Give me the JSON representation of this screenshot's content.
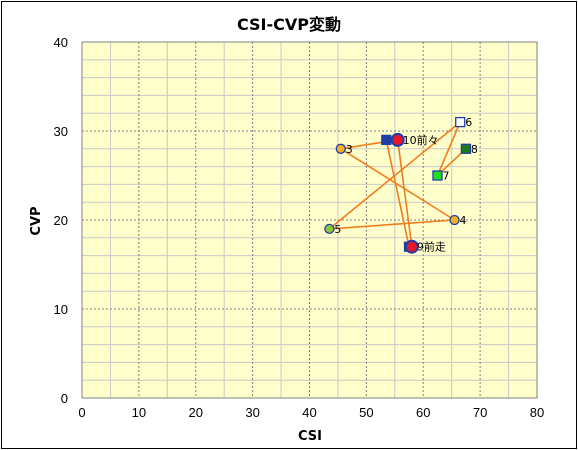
{
  "chart_data": {
    "type": "scatter",
    "title": "CSI-CVP変動",
    "xlabel": "CSI",
    "ylabel": "CVP",
    "xlim": [
      0,
      80
    ],
    "ylim": [
      0,
      40
    ],
    "x_ticks": [
      0,
      10,
      20,
      30,
      40,
      50,
      60,
      70,
      80
    ],
    "y_ticks": [
      0,
      10,
      20,
      30,
      40
    ],
    "grid": true,
    "plot_background": "#ffffcc",
    "line_color": "#f07d1e",
    "trajectory": [
      {
        "label": "9前走",
        "x": 58.0,
        "y": 17.0
      },
      {
        "label": "10前々",
        "x": 55.5,
        "y": 29.0
      },
      {
        "label": "3",
        "x": 45.5,
        "y": 28.0
      },
      {
        "label": "4",
        "x": 65.5,
        "y": 20.0
      },
      {
        "label": "5",
        "x": 43.5,
        "y": 19.0
      },
      {
        "label": "6",
        "x": 66.5,
        "y": 31.0
      },
      {
        "label": "7",
        "x": 62.5,
        "y": 25.0
      },
      {
        "label": "8",
        "x": 67.5,
        "y": 28.0
      }
    ],
    "points": [
      {
        "label": "3",
        "x": 45.5,
        "y": 28.0,
        "marker": "circle",
        "fill": "#f5b020",
        "stroke": "#1f3fa8"
      },
      {
        "label": "4",
        "x": 65.5,
        "y": 20.0,
        "marker": "circle",
        "fill": "#f5b020",
        "stroke": "#1f3fa8"
      },
      {
        "label": "5",
        "x": 43.5,
        "y": 19.0,
        "marker": "circle",
        "fill": "#8cc43c",
        "stroke": "#1f3fa8"
      },
      {
        "label": "6",
        "x": 66.5,
        "y": 31.0,
        "marker": "square",
        "fill": "#ffffff",
        "stroke": "#1f3fa8"
      },
      {
        "label": "7",
        "x": 62.5,
        "y": 25.0,
        "marker": "square",
        "fill": "#22dd22",
        "stroke": "#1f3fa8"
      },
      {
        "label": "8",
        "x": 67.5,
        "y": 28.0,
        "marker": "square",
        "fill": "#1a7a1a",
        "stroke": "#1f3fa8"
      },
      {
        "label": "",
        "x": 53.5,
        "y": 29.0,
        "marker": "square",
        "fill": "#1f3fa8",
        "stroke": "#1f3fa8"
      },
      {
        "label": "10前々",
        "x": 55.5,
        "y": 29.0,
        "marker": "circle",
        "fill": "#e8152a",
        "stroke": "#1f3fa8"
      },
      {
        "label": "",
        "x": 57.5,
        "y": 17.0,
        "marker": "square",
        "fill": "#1f3fa8",
        "stroke": "#1f3fa8"
      },
      {
        "label": "9前走",
        "x": 58.0,
        "y": 17.0,
        "marker": "circle",
        "fill": "#e8152a",
        "stroke": "#1f3fa8"
      }
    ],
    "extra_segments": [
      [
        {
          "x": 53.5,
          "y": 29.0
        },
        {
          "x": 57.5,
          "y": 17.0
        }
      ]
    ]
  }
}
